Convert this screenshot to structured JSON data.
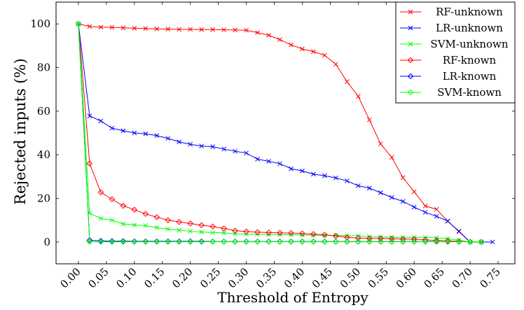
{
  "chart_data": {
    "type": "line",
    "title": "",
    "xlabel": "Threshold of Entropy",
    "ylabel": "Rejected inputs (%)",
    "xlim": [
      -0.04,
      0.78
    ],
    "ylim": [
      -10,
      110
    ],
    "xticks": [
      0.0,
      0.05,
      0.1,
      0.15,
      0.2,
      0.25,
      0.3,
      0.35,
      0.4,
      0.45,
      0.5,
      0.55,
      0.6,
      0.65,
      0.7,
      0.75
    ],
    "xtick_labels": [
      "0.00",
      "0.05",
      "0.10",
      "0.15",
      "0.20",
      "0.25",
      "0.30",
      "0.35",
      "0.40",
      "0.45",
      "0.50",
      "0.55",
      "0.60",
      "0.65",
      "0.70",
      "0.75"
    ],
    "yticks": [
      0,
      20,
      40,
      60,
      80,
      100
    ],
    "ytick_labels": [
      "0",
      "20",
      "40",
      "60",
      "80",
      "100"
    ],
    "grid": false,
    "legend_position": "top-right",
    "x": [
      0.0,
      0.02,
      0.04,
      0.06,
      0.08,
      0.1,
      0.12,
      0.14,
      0.16,
      0.18,
      0.2,
      0.22,
      0.24,
      0.26,
      0.28,
      0.3,
      0.32,
      0.34,
      0.36,
      0.38,
      0.4,
      0.42,
      0.44,
      0.46,
      0.48,
      0.5,
      0.52,
      0.54,
      0.56,
      0.58,
      0.6,
      0.62,
      0.64,
      0.66,
      0.68,
      0.7,
      0.72,
      0.74
    ],
    "series": [
      {
        "name": "RF-unknown",
        "color": "#ff0000",
        "marker": "x",
        "values": [
          100,
          98.8,
          98.5,
          98.4,
          98.2,
          98.0,
          97.9,
          97.7,
          97.6,
          97.5,
          97.5,
          97.4,
          97.4,
          97.3,
          97.2,
          97.1,
          96.0,
          94.8,
          92.8,
          90.4,
          88.5,
          87.3,
          85.6,
          81.5,
          73.5,
          66.8,
          56.0,
          45.0,
          38.8,
          29.5,
          23.0,
          16.5,
          15.0,
          9.5,
          5.0,
          0,
          0,
          null
        ]
      },
      {
        "name": "LR-unknown",
        "color": "#0000ff",
        "marker": "x",
        "values": [
          100,
          57.8,
          55.5,
          52.2,
          51.0,
          50.0,
          49.6,
          48.8,
          47.5,
          45.9,
          44.8,
          44.0,
          43.7,
          42.6,
          41.6,
          40.8,
          38.0,
          37.0,
          35.9,
          33.6,
          32.6,
          31.1,
          30.4,
          29.4,
          28.0,
          25.8,
          24.7,
          22.6,
          20.4,
          18.6,
          16.0,
          13.6,
          11.8,
          9.6,
          4.8,
          0,
          0,
          0
        ]
      },
      {
        "name": "SVM-unknown",
        "color": "#00ff00",
        "marker": "x",
        "values": [
          100,
          13.2,
          10.8,
          10.0,
          8.3,
          7.8,
          7.5,
          6.6,
          5.9,
          5.4,
          4.9,
          4.6,
          4.3,
          4.2,
          3.8,
          3.6,
          3.5,
          3.4,
          3.4,
          3.3,
          3.2,
          3.1,
          3.0,
          3.0,
          2.9,
          2.8,
          2.4,
          2.3,
          2.2,
          2.1,
          2.1,
          2.1,
          1.9,
          1.5,
          0.8,
          0,
          0,
          null
        ]
      },
      {
        "name": "RF-known",
        "color": "#ff0000",
        "marker": "diamond",
        "values": [
          100,
          36.0,
          22.8,
          19.6,
          16.6,
          14.8,
          12.9,
          11.4,
          10.0,
          9.2,
          8.5,
          7.7,
          7.1,
          6.2,
          5.2,
          4.8,
          4.5,
          4.3,
          4.2,
          4.1,
          3.9,
          3.6,
          3.3,
          2.8,
          2.1,
          1.8,
          1.6,
          1.6,
          1.5,
          1.3,
          1.3,
          1.0,
          0.7,
          0.5,
          0.3,
          0.1,
          0,
          null
        ]
      },
      {
        "name": "LR-known",
        "color": "#0000ff",
        "marker": "diamond",
        "values": [
          100,
          0.8,
          0.5,
          0.4,
          0.4,
          0.3,
          0.3,
          0.3,
          0.3,
          0.3,
          0.3,
          0.3,
          0.2,
          0.2,
          0.2,
          0.2,
          0.2,
          0.2,
          0.2,
          0.2,
          0.2,
          0.2,
          0.2,
          0.2,
          0.2,
          0.2,
          0.2,
          0.2,
          0.2,
          0.2,
          0.2,
          0.2,
          0.2,
          0.1,
          0.1,
          0.1,
          0.1,
          null
        ]
      },
      {
        "name": "SVM-known",
        "color": "#00ff00",
        "marker": "diamond",
        "values": [
          100,
          0.1,
          0.1,
          0.1,
          0.1,
          0.1,
          0.1,
          0.1,
          0.1,
          0.1,
          0.1,
          0.1,
          0.1,
          0.1,
          0.1,
          0.1,
          0.1,
          0.1,
          0.1,
          0.1,
          0.1,
          0.1,
          0.1,
          0.1,
          0.1,
          0.1,
          0.1,
          0.1,
          0.1,
          0.1,
          0.1,
          0.1,
          0.1,
          0.1,
          0.1,
          0.1,
          0.1,
          null
        ]
      }
    ]
  }
}
